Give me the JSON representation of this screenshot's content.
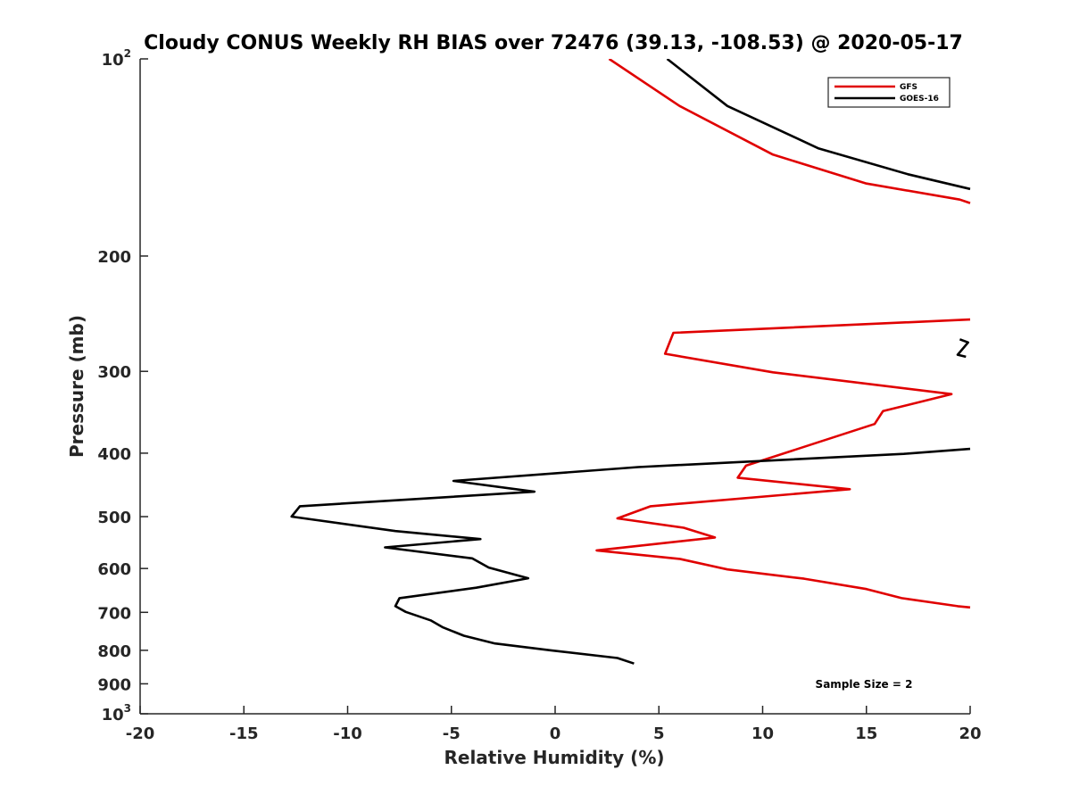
{
  "chart_data": {
    "type": "line",
    "title": "Cloudy CONUS Weekly RH BIAS over 72476 (39.13, -108.53) @ 2020-05-17",
    "xlabel": "Relative Humidity (%)",
    "ylabel": "Pressure (mb)",
    "xlim": [
      -20,
      20
    ],
    "ylim": [
      100,
      1000
    ],
    "yscale": "log",
    "y_reversed": true,
    "grid": false,
    "legend_position": "top-right",
    "xticks": [
      -20,
      -15,
      -10,
      -5,
      0,
      5,
      10,
      15,
      20
    ],
    "xtick_labels": [
      "-20",
      "-15",
      "-10",
      "-5",
      "0",
      "5",
      "10",
      "15",
      "20"
    ],
    "yticks": [
      100,
      200,
      300,
      400,
      500,
      600,
      700,
      800,
      900,
      1000
    ],
    "ytick_labels": [
      "10^2",
      "200",
      "300",
      "400",
      "500",
      "600",
      "700",
      "800",
      "900",
      "10^3"
    ],
    "annotation": "Sample Size = 2",
    "series": [
      {
        "name": "GFS",
        "color": "#e00000",
        "segments": [
          [
            [
              2.6,
              100
            ],
            [
              6,
              118
            ],
            [
              10.5,
              140
            ],
            [
              15,
              155
            ],
            [
              19.5,
              164
            ],
            [
              20,
              166
            ]
          ],
          [
            [
              20,
              250
            ],
            [
              5.7,
              262
            ],
            [
              5.3,
              282
            ],
            [
              10.5,
              301
            ],
            [
              19.1,
              325
            ],
            [
              15.8,
              345
            ],
            [
              15.4,
              361
            ],
            [
              9.2,
              418
            ],
            [
              8.8,
              436
            ],
            [
              14.2,
              454
            ],
            [
              4.6,
              482
            ],
            [
              3,
              503
            ],
            [
              6.2,
              520
            ],
            [
              7.7,
              538
            ],
            [
              2,
              563
            ],
            [
              6,
              580
            ],
            [
              8.3,
              602
            ],
            [
              12,
              622
            ],
            [
              15,
              645
            ],
            [
              16.7,
              666
            ],
            [
              19.4,
              685
            ],
            [
              20,
              688
            ]
          ]
        ]
      },
      {
        "name": "GOES-16",
        "color": "#000000",
        "segments": [
          [
            [
              5.4,
              100
            ],
            [
              8.3,
              118
            ],
            [
              12.7,
              137
            ],
            [
              17,
              150
            ],
            [
              20,
              158
            ]
          ],
          [
            [
              19.5,
              268
            ],
            [
              19.9,
              271
            ],
            [
              19.4,
              283
            ],
            [
              19.8,
              285
            ]
          ],
          [
            [
              20,
              394
            ],
            [
              16.8,
              401
            ],
            [
              4,
              420
            ],
            [
              -4.9,
              441
            ],
            [
              -1,
              458
            ],
            [
              -12.3,
              482
            ],
            [
              -12.7,
              500
            ],
            [
              -7.7,
              526
            ],
            [
              -3.6,
              541
            ],
            [
              -8.2,
              557
            ],
            [
              -4,
              579
            ],
            [
              -3.2,
              598
            ],
            [
              -1.3,
              621
            ],
            [
              -3.8,
              642
            ],
            [
              -7.5,
              666
            ],
            [
              -7.7,
              685
            ],
            [
              -7.2,
              699
            ],
            [
              -6,
              720
            ],
            [
              -5.4,
              738
            ],
            [
              -4.4,
              760
            ],
            [
              -2.9,
              781
            ],
            [
              -0.2,
              800
            ],
            [
              3,
              822
            ],
            [
              3.8,
              838
            ]
          ]
        ]
      }
    ]
  }
}
